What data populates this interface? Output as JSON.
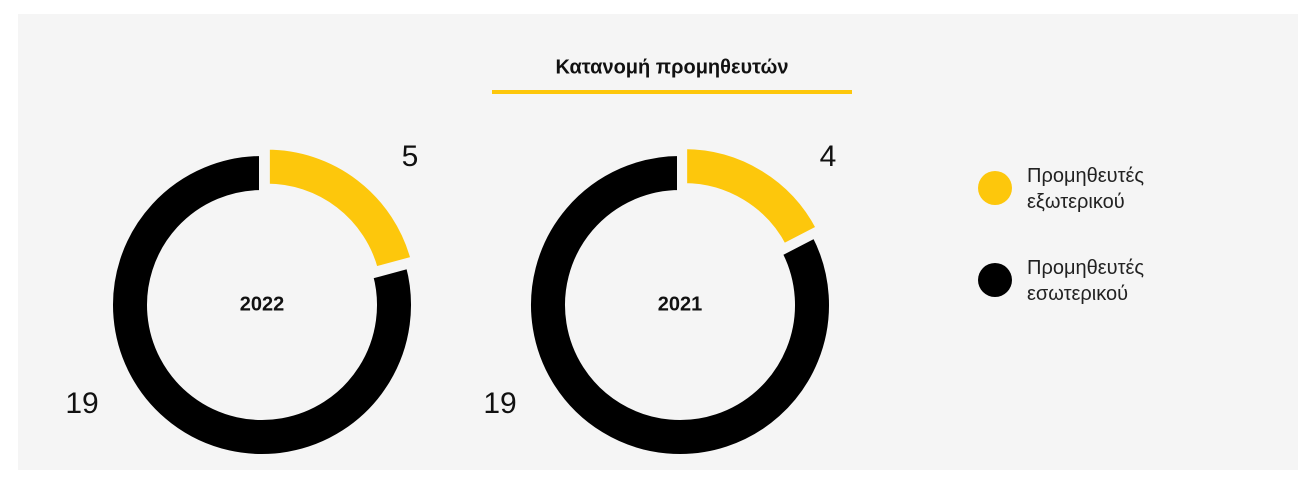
{
  "title": "Κατανομή προμηθευτών",
  "chart_data": [
    {
      "type": "donut",
      "title": "2022",
      "categories": [
        "Προμηθευτές εξωτερικού",
        "Προμηθευτές εσωτερικού"
      ],
      "values": [
        5,
        19
      ],
      "colors": [
        "#fdc70c",
        "#000000"
      ]
    },
    {
      "type": "donut",
      "title": "2021",
      "categories": [
        "Προμηθευτές εξωτερικού",
        "Προμηθευτές εσωτερικού"
      ],
      "values": [
        4,
        19
      ],
      "colors": [
        "#fdc70c",
        "#000000"
      ]
    }
  ]
}
